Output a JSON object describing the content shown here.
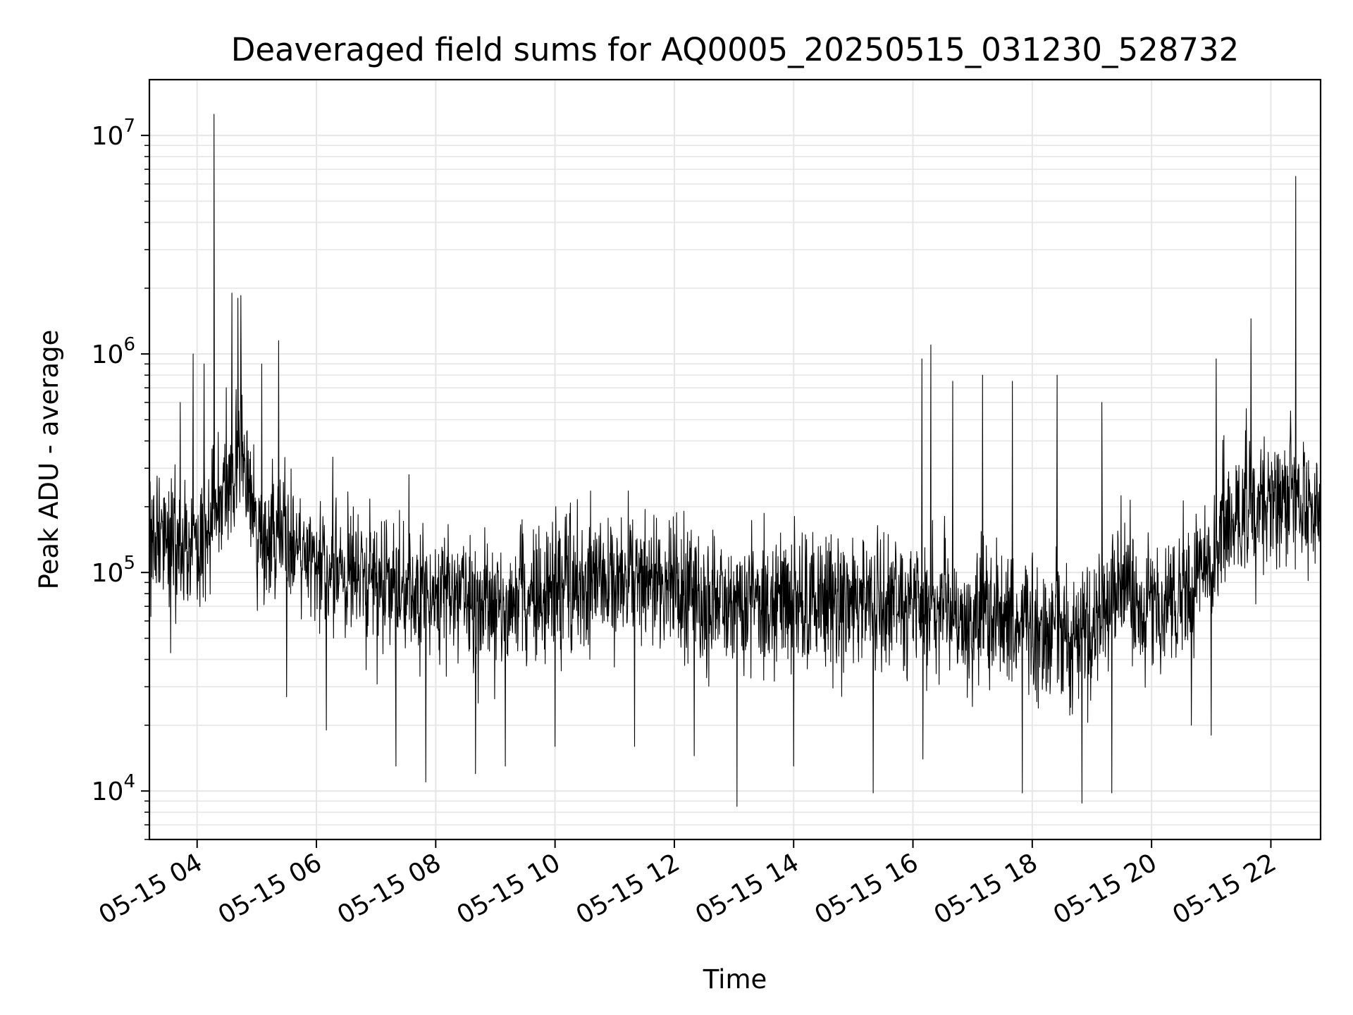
{
  "chart_data": {
    "type": "line",
    "title": "Deaveraged field sums for AQ0005_20250515_031230_528732",
    "xlabel": "Time",
    "ylabel": "Peak ADU - average",
    "yscale": "log",
    "grid": true,
    "line_color": "#000000",
    "grid_color": "#e6e6e6",
    "xlim": [
      "2025-05-15 03:12",
      "2025-05-15 22:50"
    ],
    "ylim": [
      6000,
      18000000
    ],
    "x_ticks": [
      {
        "value": "2025-05-15 04:00",
        "label": "05-15 04"
      },
      {
        "value": "2025-05-15 06:00",
        "label": "05-15 06"
      },
      {
        "value": "2025-05-15 08:00",
        "label": "05-15 08"
      },
      {
        "value": "2025-05-15 10:00",
        "label": "05-15 10"
      },
      {
        "value": "2025-05-15 12:00",
        "label": "05-15 12"
      },
      {
        "value": "2025-05-15 14:00",
        "label": "05-15 14"
      },
      {
        "value": "2025-05-15 16:00",
        "label": "05-15 16"
      },
      {
        "value": "2025-05-15 18:00",
        "label": "05-15 18"
      },
      {
        "value": "2025-05-15 20:00",
        "label": "05-15 20"
      },
      {
        "value": "2025-05-15 22:00",
        "label": "05-15 22"
      }
    ],
    "y_ticks": [
      {
        "value": 10000,
        "base": "10",
        "exp": "4"
      },
      {
        "value": 100000,
        "base": "10",
        "exp": "5"
      },
      {
        "value": 1000000,
        "base": "10",
        "exp": "6"
      },
      {
        "value": 10000000,
        "base": "10",
        "exp": "7"
      }
    ],
    "baseline": [
      [
        "2025-05-15 03:12",
        140000
      ],
      [
        "2025-05-15 03:40",
        140000
      ],
      [
        "2025-05-15 04:10",
        150000
      ],
      [
        "2025-05-15 04:30",
        250000
      ],
      [
        "2025-05-15 04:45",
        400000
      ],
      [
        "2025-05-15 05:00",
        150000
      ],
      [
        "2025-05-15 05:30",
        120000
      ],
      [
        "2025-05-15 06:00",
        110000
      ],
      [
        "2025-05-15 07:00",
        95000
      ],
      [
        "2025-05-15 08:00",
        80000
      ],
      [
        "2025-05-15 09:00",
        65000
      ],
      [
        "2025-05-15 10:00",
        85000
      ],
      [
        "2025-05-15 11:00",
        95000
      ],
      [
        "2025-05-15 12:00",
        85000
      ],
      [
        "2025-05-15 13:00",
        70000
      ],
      [
        "2025-05-15 14:00",
        75000
      ],
      [
        "2025-05-15 15:00",
        75000
      ],
      [
        "2025-05-15 16:00",
        72000
      ],
      [
        "2025-05-15 17:00",
        62000
      ],
      [
        "2025-05-15 18:00",
        55000
      ],
      [
        "2025-05-15 19:00",
        50000
      ],
      [
        "2025-05-15 19:30",
        95000
      ],
      [
        "2025-05-15 20:00",
        65000
      ],
      [
        "2025-05-15 20:40",
        85000
      ],
      [
        "2025-05-15 21:00",
        130000
      ],
      [
        "2025-05-15 21:40",
        210000
      ],
      [
        "2025-05-15 22:00",
        220000
      ],
      [
        "2025-05-15 22:50",
        200000
      ]
    ],
    "spikes": [
      [
        "2025-05-15 03:43",
        600000
      ],
      [
        "2025-05-15 03:56",
        1000000
      ],
      [
        "2025-05-15 04:07",
        900000
      ],
      [
        "2025-05-15 04:17",
        12500000
      ],
      [
        "2025-05-15 04:35",
        1900000
      ],
      [
        "2025-05-15 04:41",
        1800000
      ],
      [
        "2025-05-15 04:44",
        1850000
      ],
      [
        "2025-05-15 05:05",
        900000
      ],
      [
        "2025-05-15 05:22",
        1150000
      ],
      [
        "2025-05-15 16:09",
        950000
      ],
      [
        "2025-05-15 16:18",
        1100000
      ],
      [
        "2025-05-15 16:40",
        750000
      ],
      [
        "2025-05-15 17:10",
        800000
      ],
      [
        "2025-05-15 17:40",
        750000
      ],
      [
        "2025-05-15 18:25",
        800000
      ],
      [
        "2025-05-15 19:10",
        600000
      ],
      [
        "2025-05-15 21:05",
        950000
      ],
      [
        "2025-05-15 21:40",
        1450000
      ],
      [
        "2025-05-15 22:25",
        6500000
      ]
    ],
    "dips": [
      [
        "2025-05-15 05:30",
        27000
      ],
      [
        "2025-05-15 06:10",
        19000
      ],
      [
        "2025-05-15 07:20",
        13000
      ],
      [
        "2025-05-15 07:50",
        11000
      ],
      [
        "2025-05-15 08:40",
        12000
      ],
      [
        "2025-05-15 09:10",
        13000
      ],
      [
        "2025-05-15 10:00",
        16000
      ],
      [
        "2025-05-15 11:20",
        16000
      ],
      [
        "2025-05-15 12:20",
        14500
      ],
      [
        "2025-05-15 13:03",
        8500
      ],
      [
        "2025-05-15 14:00",
        13000
      ],
      [
        "2025-05-15 15:20",
        9800
      ],
      [
        "2025-05-15 16:10",
        14000
      ],
      [
        "2025-05-15 17:50",
        9800
      ],
      [
        "2025-05-15 18:50",
        8800
      ],
      [
        "2025-05-15 19:20",
        9800
      ],
      [
        "2025-05-15 20:40",
        20000
      ],
      [
        "2025-05-15 21:00",
        18000
      ]
    ]
  }
}
